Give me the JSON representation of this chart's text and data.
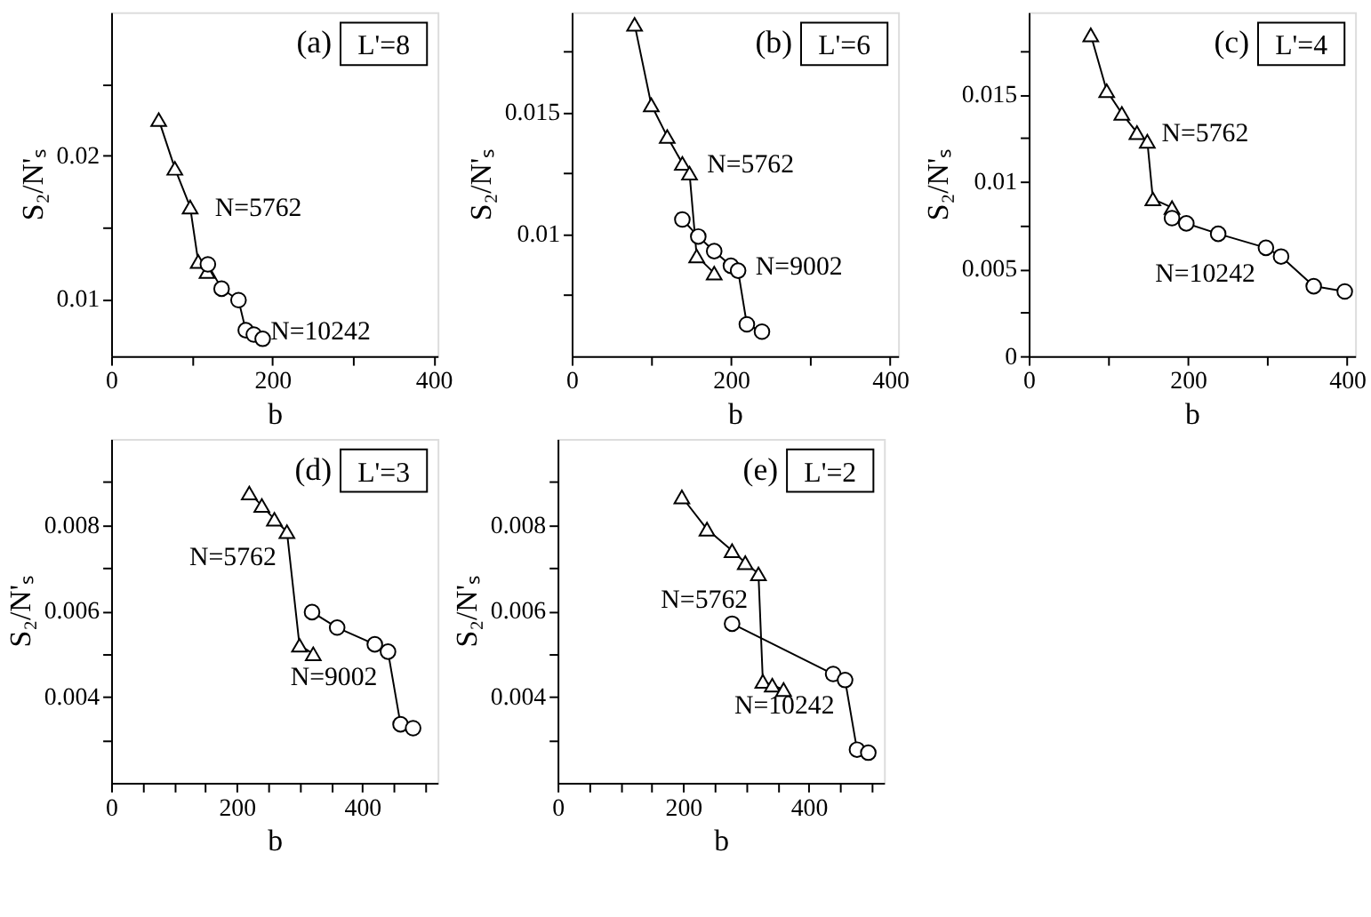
{
  "chart_data": [
    {
      "type": "line",
      "title": "(a)",
      "subtitle": "L'=8",
      "xlabel": "b",
      "ylabel": "S₂/N'ₛ",
      "xlim": [
        0,
        405
      ],
      "xticks": [
        0,
        {
          "value": 100,
          "label": null
        },
        200,
        {
          "value": 300,
          "label": null
        },
        400
      ],
      "ylim": [
        0.006,
        0.03
      ],
      "yticks": [
        0.01,
        {
          "value": 0.015,
          "label": null
        },
        0.02,
        {
          "value": 0.025,
          "label": null
        }
      ],
      "grid": false,
      "legend": false,
      "series": [
        {
          "name": "N=5762",
          "color": "#000000",
          "marker": "triangle",
          "x": [
            59,
            79,
            98,
            108,
            119
          ],
          "values": [
            0.0225,
            0.0191,
            0.0164,
            0.0126,
            0.0119
          ]
        },
        {
          "name": "N=10242",
          "color": "#000000",
          "marker": "circle",
          "x": [
            120,
            137,
            158,
            167,
            177,
            188
          ],
          "values": [
            0.0124,
            0.0107,
            0.0099,
            0.0078,
            0.0075,
            0.0072
          ]
        }
      ]
    },
    {
      "type": "line",
      "title": "(b)",
      "subtitle": "L'=6",
      "xlabel": "b",
      "ylabel": "S₂/N'ₛ",
      "xlim": [
        0,
        410
      ],
      "xticks": [
        0,
        {
          "value": 100,
          "label": null
        },
        200,
        {
          "value": 300,
          "label": null
        },
        400
      ],
      "ylim": [
        0.005,
        0.0191
      ],
      "yticks": [
        {
          "value": 0.0075,
          "label": null
        },
        0.01,
        {
          "value": 0.0125,
          "label": null
        },
        0.015,
        {
          "value": 0.0175,
          "label": null
        }
      ],
      "grid": false,
      "legend": false,
      "series": [
        {
          "name": "N=5762",
          "color": "#000000",
          "marker": "triangle",
          "x": [
            79,
            100,
            120,
            139,
            148,
            157,
            179
          ],
          "values": [
            0.0186,
            0.0153,
            0.014,
            0.0129,
            0.0125,
            0.0091,
            0.0084
          ]
        },
        {
          "name": "N=9002",
          "color": "#000000",
          "marker": "circle",
          "x": [
            139,
            159,
            179,
            200,
            209,
            220,
            239
          ],
          "values": [
            0.0106,
            0.0099,
            0.0093,
            0.0087,
            0.0085,
            0.0063,
            0.006
          ]
        }
      ]
    },
    {
      "type": "line",
      "title": "(c)",
      "subtitle": "L'=4",
      "xlabel": "b",
      "ylabel": "S₂/N'ₛ",
      "xlim": [
        0,
        410
      ],
      "xticks": [
        0,
        {
          "value": 100,
          "label": null
        },
        200,
        {
          "value": 300,
          "label": null
        },
        400
      ],
      "ylim": [
        0,
        0.0197
      ],
      "yticks": [
        0,
        {
          "value": 0.0025,
          "label": null
        },
        0.005,
        {
          "value": 0.0075,
          "label": null
        },
        0.01,
        {
          "value": 0.0125,
          "label": null
        },
        0.015,
        {
          "value": 0.0175,
          "label": null
        }
      ],
      "grid": false,
      "legend": false,
      "series": [
        {
          "name": "N=5762",
          "color": "#000000",
          "marker": "triangle",
          "x": [
            78,
            98,
            117,
            136,
            149,
            156,
            180
          ],
          "values": [
            0.0184,
            0.0152,
            0.0139,
            0.0128,
            0.0123,
            0.009,
            0.0085
          ]
        },
        {
          "name": "N=10242",
          "color": "#000000",
          "marker": "circle",
          "x": [
            180,
            198,
            238,
            298,
            317,
            358,
            397
          ],
          "values": [
            0.0079,
            0.0076,
            0.007,
            0.0062,
            0.0057,
            0.004,
            0.0037
          ]
        }
      ]
    },
    {
      "type": "line",
      "title": "(d)",
      "subtitle": "L'=3",
      "xlabel": "b",
      "ylabel": "S₂/N'ₛ",
      "xlim": [
        0,
        520
      ],
      "xticks": [
        0,
        {
          "value": 50,
          "label": null
        },
        {
          "value": 100,
          "label": null
        },
        {
          "value": 150,
          "label": null
        },
        200,
        {
          "value": 250,
          "label": null
        },
        {
          "value": 300,
          "label": null
        },
        {
          "value": 350,
          "label": null
        },
        400,
        {
          "value": 450,
          "label": null
        },
        {
          "value": 500,
          "label": null
        }
      ],
      "ylim": [
        0.002,
        0.01
      ],
      "yticks": [
        {
          "value": 0.003,
          "label": null
        },
        0.004,
        {
          "value": 0.005,
          "label": null
        },
        0.006,
        {
          "value": 0.007,
          "label": null
        },
        0.008,
        {
          "value": 0.009,
          "label": null
        }
      ],
      "grid": false,
      "legend": false,
      "series": [
        {
          "name": "N=5762",
          "color": "#000000",
          "marker": "triangle",
          "x": [
            220,
            240,
            260,
            280,
            300,
            322
          ],
          "values": [
            0.00874,
            0.00845,
            0.00813,
            0.00784,
            0.0052,
            0.005
          ]
        },
        {
          "name": "N=9002",
          "color": "#000000",
          "marker": "circle",
          "x": [
            320,
            360,
            420,
            441,
            461,
            481
          ],
          "values": [
            0.00597,
            0.00561,
            0.00522,
            0.00505,
            0.00336,
            0.00327
          ]
        }
      ]
    },
    {
      "type": "line",
      "title": "(e)",
      "subtitle": "L'=2",
      "xlabel": "b",
      "ylabel": "S₂/N'ₛ",
      "xlim": [
        0,
        520
      ],
      "xticks": [
        0,
        {
          "value": 50,
          "label": null
        },
        {
          "value": 100,
          "label": null
        },
        {
          "value": 150,
          "label": null
        },
        200,
        {
          "value": 250,
          "label": null
        },
        {
          "value": 300,
          "label": null
        },
        {
          "value": 350,
          "label": null
        },
        400,
        {
          "value": 450,
          "label": null
        },
        {
          "value": 500,
          "label": null
        }
      ],
      "ylim": [
        0.002,
        0.01
      ],
      "yticks": [
        {
          "value": 0.003,
          "label": null
        },
        0.004,
        {
          "value": 0.005,
          "label": null
        },
        0.006,
        {
          "value": 0.007,
          "label": null
        },
        0.008,
        {
          "value": 0.009,
          "label": null
        }
      ],
      "grid": false,
      "legend": false,
      "series": [
        {
          "name": "N=5762",
          "color": "#000000",
          "marker": "triangle",
          "x": [
            198,
            238,
            278,
            299,
            320,
            327,
            342,
            360
          ],
          "values": [
            0.00865,
            0.0079,
            0.0074,
            0.00712,
            0.00686,
            0.00436,
            0.00427,
            0.00417
          ]
        },
        {
          "name": "N=10242",
          "color": "#000000",
          "marker": "circle",
          "x": [
            278,
            439,
            458,
            477,
            495
          ],
          "values": [
            0.0057,
            0.00453,
            0.00439,
            0.00277,
            0.0027
          ]
        }
      ]
    }
  ]
}
